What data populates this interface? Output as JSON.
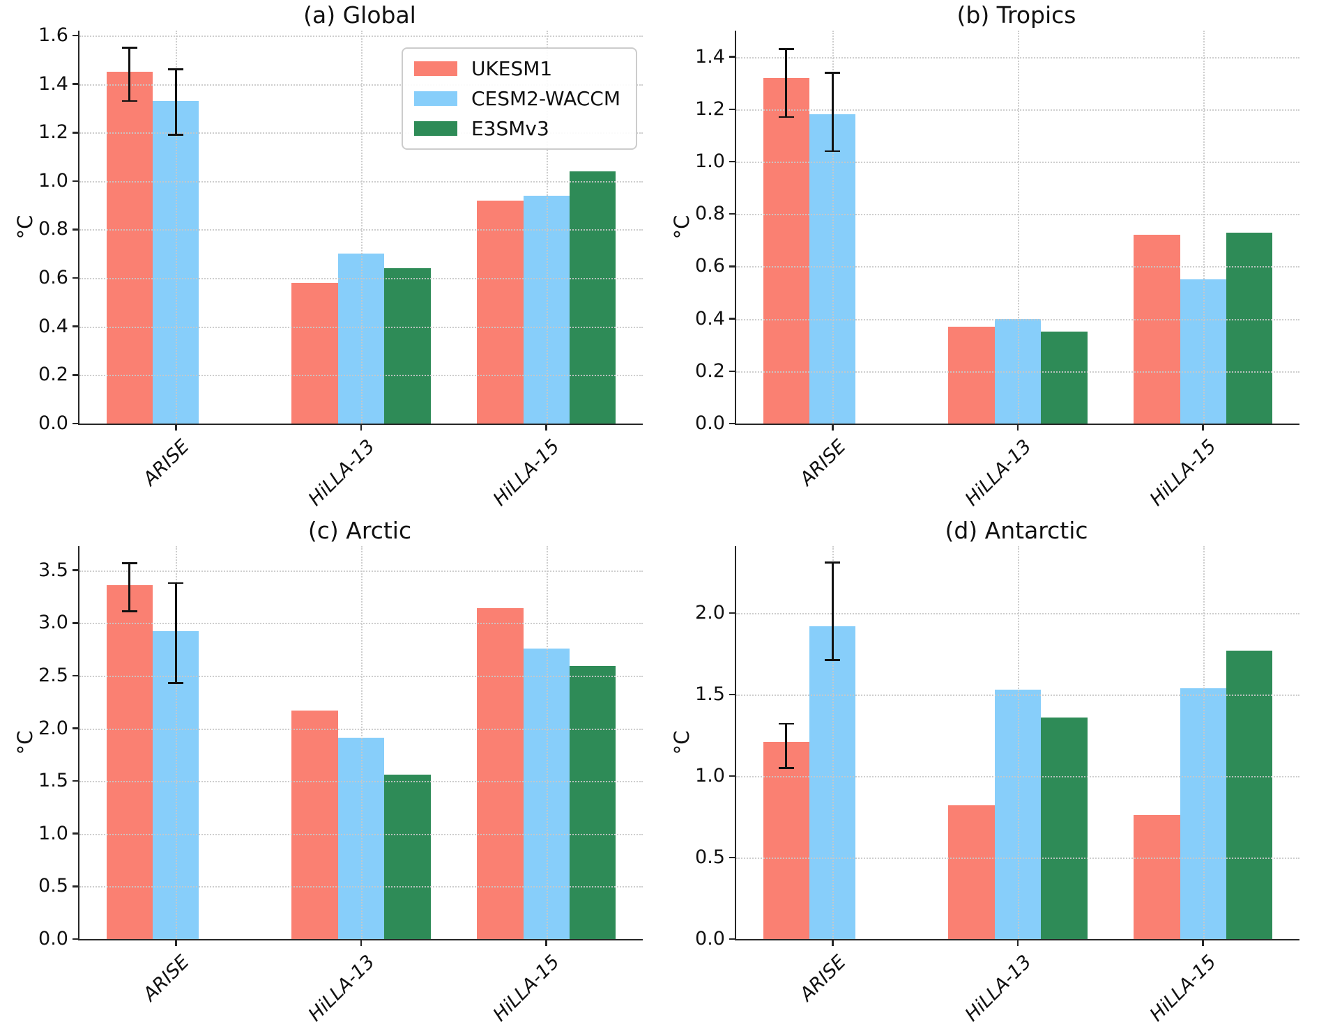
{
  "figure": {
    "ylabel": "°C",
    "categories": [
      "ARISE",
      "HiLLA-13",
      "HiLLA-15"
    ],
    "series_meta": [
      {
        "name": "UKESM1",
        "color": "#FA8072"
      },
      {
        "name": "CESM2-WACCM",
        "color": "#87CEFA"
      },
      {
        "name": "E3SMv3",
        "color": "#2E8B57"
      }
    ],
    "legend": {
      "entries": [
        "UKESM1",
        "CESM2-WACCM",
        "E3SMv3"
      ],
      "position": "upper right of panel (a)"
    },
    "grid": {
      "style": "dotted",
      "color": "#c9c9c9",
      "both_axes": true,
      "drawn_above_bars": true
    },
    "spine_color": "#262626",
    "errorbar_color": "#111111"
  },
  "chart_data": [
    {
      "type": "bar",
      "title": "(a) Global",
      "ylabel": "°C",
      "categories": [
        "ARISE",
        "HiLLA-13",
        "HiLLA-15"
      ],
      "series": [
        {
          "name": "UKESM1",
          "color": "#FA8072",
          "values": [
            1.45,
            0.58,
            0.92
          ],
          "error_ranges": [
            [
              1.33,
              1.55
            ],
            null,
            null
          ]
        },
        {
          "name": "CESM2-WACCM",
          "color": "#87CEFA",
          "values": [
            1.33,
            0.7,
            0.94
          ],
          "error_ranges": [
            [
              1.19,
              1.46
            ],
            null,
            null
          ]
        },
        {
          "name": "E3SMv3",
          "color": "#2E8B57",
          "values": [
            null,
            0.64,
            1.04
          ],
          "error_ranges": [
            null,
            null,
            null
          ]
        }
      ],
      "yticks": [
        0.0,
        0.2,
        0.4,
        0.6,
        0.8,
        1.0,
        1.2,
        1.4,
        1.6
      ],
      "ylim": [
        0,
        1.62
      ],
      "legend_here": true
    },
    {
      "type": "bar",
      "title": "(b) Tropics",
      "ylabel": "°C",
      "categories": [
        "ARISE",
        "HiLLA-13",
        "HiLLA-15"
      ],
      "series": [
        {
          "name": "UKESM1",
          "color": "#FA8072",
          "values": [
            1.32,
            0.37,
            0.72
          ],
          "error_ranges": [
            [
              1.17,
              1.43
            ],
            null,
            null
          ]
        },
        {
          "name": "CESM2-WACCM",
          "color": "#87CEFA",
          "values": [
            1.18,
            0.4,
            0.55
          ],
          "error_ranges": [
            [
              1.04,
              1.34
            ],
            null,
            null
          ]
        },
        {
          "name": "E3SMv3",
          "color": "#2E8B57",
          "values": [
            null,
            0.35,
            0.73
          ],
          "error_ranges": [
            null,
            null,
            null
          ]
        }
      ],
      "yticks": [
        0.0,
        0.2,
        0.4,
        0.6,
        0.8,
        1.0,
        1.2,
        1.4
      ],
      "ylim": [
        0,
        1.5
      ],
      "legend_here": false
    },
    {
      "type": "bar",
      "title": "(c) Arctic",
      "ylabel": "°C",
      "categories": [
        "ARISE",
        "HiLLA-13",
        "HiLLA-15"
      ],
      "series": [
        {
          "name": "UKESM1",
          "color": "#FA8072",
          "values": [
            3.36,
            2.17,
            3.14
          ],
          "error_ranges": [
            [
              3.11,
              3.57
            ],
            null,
            null
          ]
        },
        {
          "name": "CESM2-WACCM",
          "color": "#87CEFA",
          "values": [
            2.92,
            1.91,
            2.76
          ],
          "error_ranges": [
            [
              2.43,
              3.38
            ],
            null,
            null
          ]
        },
        {
          "name": "E3SMv3",
          "color": "#2E8B57",
          "values": [
            null,
            1.56,
            2.59
          ],
          "error_ranges": [
            null,
            null,
            null
          ]
        }
      ],
      "yticks": [
        0.0,
        0.5,
        1.0,
        1.5,
        2.0,
        2.5,
        3.0,
        3.5
      ],
      "ylim": [
        0,
        3.73
      ],
      "legend_here": false
    },
    {
      "type": "bar",
      "title": "(d) Antarctic",
      "ylabel": "°C",
      "categories": [
        "ARISE",
        "HiLLA-13",
        "HiLLA-15"
      ],
      "series": [
        {
          "name": "UKESM1",
          "color": "#FA8072",
          "values": [
            1.21,
            0.82,
            0.76
          ],
          "error_ranges": [
            [
              1.05,
              1.32
            ],
            null,
            null
          ]
        },
        {
          "name": "CESM2-WACCM",
          "color": "#87CEFA",
          "values": [
            1.92,
            1.53,
            1.54
          ],
          "error_ranges": [
            [
              1.71,
              2.31
            ],
            null,
            null
          ]
        },
        {
          "name": "E3SMv3",
          "color": "#2E8B57",
          "values": [
            null,
            1.36,
            1.77
          ],
          "error_ranges": [
            null,
            null,
            null
          ]
        }
      ],
      "yticks": [
        0.0,
        0.5,
        1.0,
        1.5,
        2.0
      ],
      "ylim": [
        0,
        2.41
      ],
      "legend_here": false
    }
  ]
}
